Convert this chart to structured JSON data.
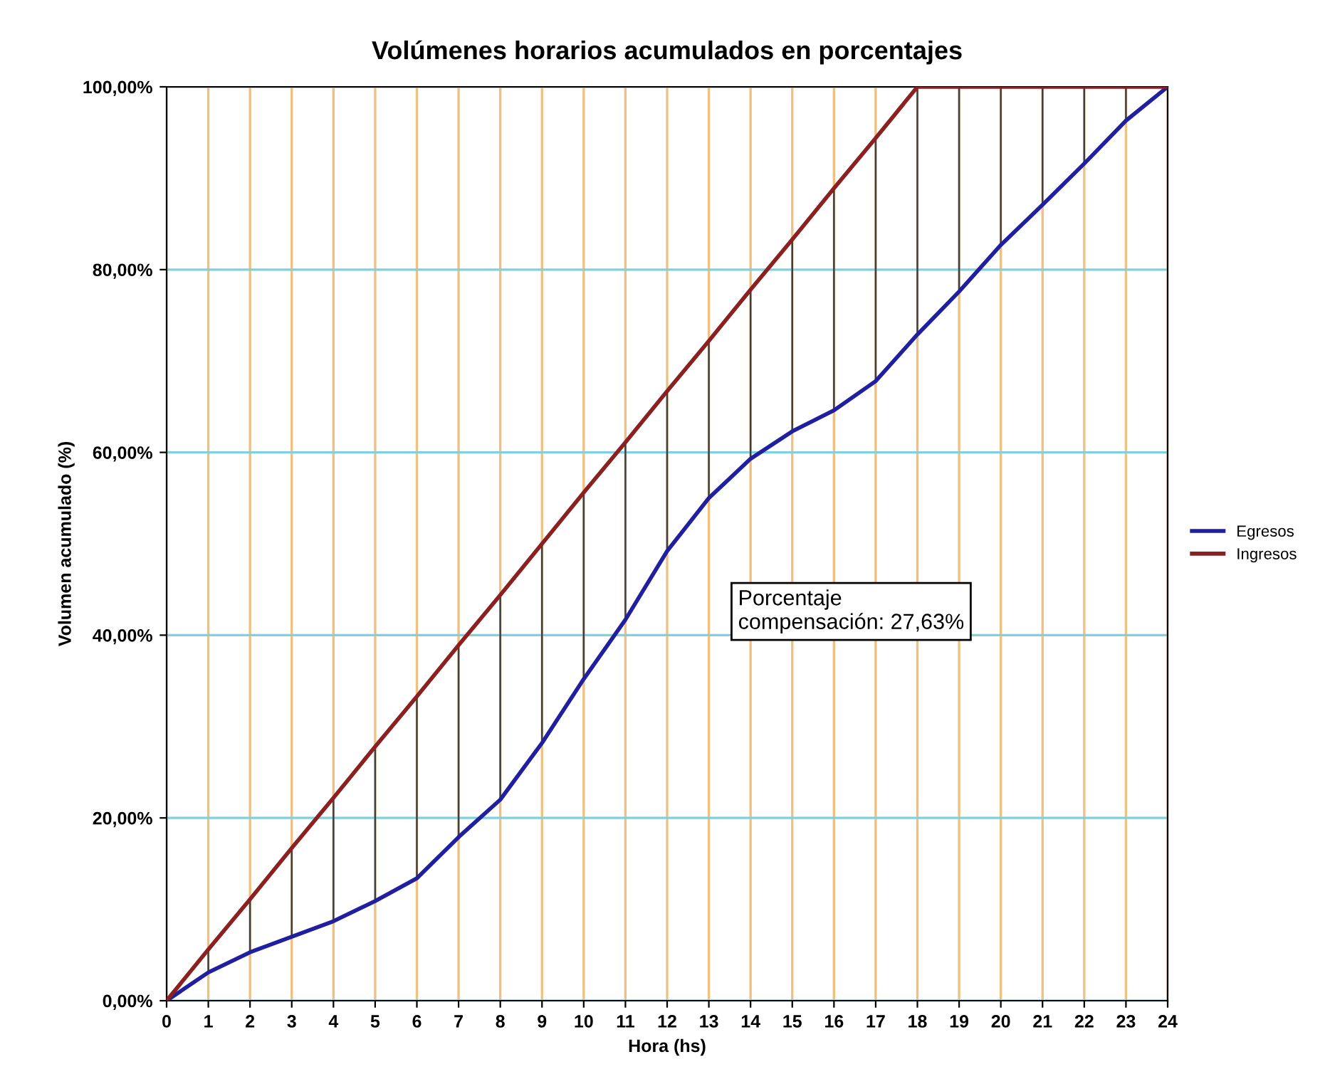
{
  "chart_data": {
    "type": "line",
    "title": "Volúmenes horarios acumulados en porcentajes",
    "xlabel": "Hora (hs)",
    "ylabel": "Volumen acumulado (%)",
    "x": [
      0,
      1,
      2,
      3,
      4,
      5,
      6,
      7,
      8,
      9,
      10,
      11,
      12,
      13,
      14,
      15,
      16,
      17,
      18,
      19,
      20,
      21,
      22,
      23,
      24
    ],
    "series": [
      {
        "name": "Egresos",
        "color": "#1f1f9f",
        "values": [
          0,
          3.1,
          5.3,
          7.0,
          8.7,
          10.9,
          13.4,
          17.9,
          22.0,
          28.2,
          35.2,
          41.7,
          49.2,
          55.0,
          59.3,
          62.3,
          64.6,
          67.8,
          72.9,
          77.6,
          82.7,
          87.1,
          91.6,
          96.3,
          100
        ]
      },
      {
        "name": "Ingresos",
        "color": "#8b2020",
        "values": [
          0,
          5.6,
          11.1,
          16.7,
          22.2,
          27.8,
          33.3,
          38.9,
          44.4,
          50,
          55.6,
          61.1,
          66.7,
          72.2,
          77.8,
          83.3,
          88.9,
          94.4,
          100,
          100,
          100,
          100,
          100,
          100,
          100
        ],
        "errors": [
          null,
          [
            3.1,
            5.6
          ],
          [
            5.3,
            11.1
          ],
          [
            7.0,
            16.7
          ],
          [
            8.7,
            22.2
          ],
          [
            10.9,
            27.8
          ],
          [
            13.4,
            33.3
          ],
          [
            17.9,
            38.9
          ],
          [
            22.0,
            44.4
          ],
          [
            28.2,
            50
          ],
          [
            35.2,
            55.6
          ],
          [
            41.7,
            61.1
          ],
          [
            49.2,
            66.7
          ],
          [
            55.0,
            72.2
          ],
          [
            59.3,
            77.8
          ],
          [
            62.3,
            83.3
          ],
          [
            64.6,
            88.9
          ],
          [
            67.8,
            94.4
          ],
          [
            72.9,
            100
          ],
          [
            77.6,
            100
          ],
          [
            82.7,
            100
          ],
          [
            87.1,
            100
          ],
          [
            91.6,
            100
          ],
          [
            96.3,
            100
          ],
          null
        ]
      }
    ],
    "xlim": [
      0,
      24
    ],
    "xticks": [
      0,
      1,
      2,
      3,
      4,
      5,
      6,
      7,
      8,
      9,
      10,
      11,
      12,
      13,
      14,
      15,
      16,
      17,
      18,
      19,
      20,
      21,
      22,
      23,
      24
    ],
    "ylim": [
      0,
      100
    ],
    "yticks": [
      {
        "value": 0,
        "label": "0,00%"
      },
      {
        "value": 20,
        "label": "20,00%"
      },
      {
        "value": 40,
        "label": "40,00%"
      },
      {
        "value": 60,
        "label": "60,00%"
      },
      {
        "value": 80,
        "label": "80,00%"
      },
      {
        "value": 100,
        "label": "100,00%"
      }
    ],
    "grid": true,
    "legend": "right",
    "marker": "none",
    "line_style": "solid",
    "annotations": [
      "Porcentaje\ncompensación: 27,63%"
    ]
  }
}
